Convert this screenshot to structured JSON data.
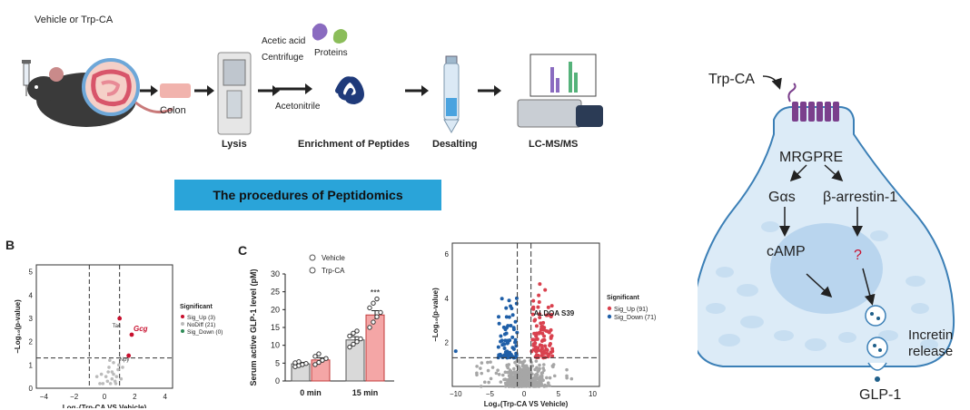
{
  "workflow": {
    "top_left_label": "Vehicle or Trp-CA",
    "colon_label": "Colon",
    "steps": [
      "Lysis",
      "Enrichment of Peptides",
      "Desalting",
      "LC-MS/MS"
    ],
    "reagent_1": "Acetic acid",
    "reagent_2": "Centrifuge",
    "reagent_3": "Acetonitrile",
    "proteins_label": "Proteins",
    "banner": "The procedures of Peptidomics",
    "colors": {
      "banner": "#2aa4d9",
      "peptide": "#1f3a7a",
      "arrow": "#222222"
    }
  },
  "panel_b": {
    "label": "B",
    "xlabel": "Log₂(Trp-CA VS Vehicle)",
    "ylabel": "−Log₁₀(p-value)",
    "x_ticks": [
      "−4",
      "−2",
      "0",
      "2",
      "4"
    ],
    "y_ticks": [
      "0",
      "1",
      "2",
      "3",
      "4",
      "5"
    ],
    "legend_title": "Significant",
    "legend": [
      "Sig_Up (3)",
      "NoDiff (21)",
      "Sig_Down (0)"
    ],
    "annotations": [
      "Tac",
      "Gcg",
      "Npy"
    ],
    "colors": {
      "up": "#c8102e",
      "nodiff": "#bbbbbb",
      "down": "#2e8b57"
    }
  },
  "panel_c": {
    "label": "C",
    "ylabel": "Serum active GLP-1 level (pM)",
    "legend": [
      "Vehicle",
      "Trp-CA"
    ],
    "significance": "***",
    "colors": {
      "vehicle": "#d9d9d9",
      "trp": "#f4a6a6"
    }
  },
  "volcano": {
    "xlabel": "Log₂(Trp-CA VS Vehicle)",
    "ylabel": "−Log₁₀(p-value)",
    "x_ticks": [
      "−10",
      "−5",
      "0",
      "5",
      "10"
    ],
    "y_ticks": [
      "2",
      "4",
      "6"
    ],
    "legend_title": "Significant",
    "legend": [
      "Sig_Up (91)",
      "Sig_Down (71)"
    ],
    "highlight": "ALDOA S39",
    "colors": {
      "up": "#d9414e",
      "down": "#1f5fa8",
      "ns": "#a6a6a6"
    }
  },
  "mechanism": {
    "ligand": "Trp-CA",
    "receptor": "MRGPRE",
    "gas": "Gαs",
    "arrestin": "β-arrestin-1",
    "camp": "cAMP",
    "unknown": "?",
    "incretin_line1": "Incretin",
    "incretin_line2": "release",
    "glp1": "GLP-1",
    "colors": {
      "cell": "#dcebf7",
      "outline": "#3b7fb6",
      "receptor": "#7b3f8c",
      "nucleus": "#b9d5ee"
    }
  },
  "chart_data": [
    {
      "type": "scatter",
      "title": "",
      "xlabel": "Log₂(Trp-CA VS Vehicle)",
      "ylabel": "−Log₁₀(p-value)",
      "xlim": [
        -4.5,
        4.5
      ],
      "ylim": [
        0,
        5.3
      ],
      "series": [
        {
          "name": "Sig_Up (3)",
          "points": [
            [
              1.0,
              3.0
            ],
            [
              1.8,
              2.3
            ],
            [
              1.6,
              1.4
            ]
          ]
        },
        {
          "name": "NoDiff (21)",
          "points": [
            [
              0.2,
              0.3
            ],
            [
              0.5,
              0.7
            ],
            [
              -0.3,
              0.2
            ],
            [
              0.8,
              0.5
            ],
            [
              0.6,
              1.1
            ],
            [
              -0.2,
              0.6
            ],
            [
              0.3,
              0.9
            ],
            [
              1.1,
              0.4
            ],
            [
              0.9,
              0.8
            ],
            [
              0.4,
              0.2
            ],
            [
              -0.5,
              0.5
            ],
            [
              0.7,
              0.3
            ],
            [
              0.1,
              0.5
            ],
            [
              1.2,
              0.9
            ],
            [
              0.6,
              0.6
            ],
            [
              -0.1,
              0.2
            ],
            [
              0.35,
              1.2
            ],
            [
              0.95,
              1.0
            ],
            [
              0.5,
              0.4
            ],
            [
              0.25,
              0.7
            ],
            [
              0.75,
              0.2
            ]
          ]
        },
        {
          "name": "Sig_Down (0)",
          "points": []
        }
      ],
      "vlines": [
        -1,
        1
      ],
      "hline": 1.3
    },
    {
      "type": "bar",
      "title": "",
      "categories": [
        "0 min",
        "15 min"
      ],
      "ylabel": "Serum active GLP-1 level (pM)",
      "ylim": [
        0,
        30
      ],
      "y_ticks": [
        0,
        5,
        10,
        15,
        20,
        25,
        30
      ],
      "series": [
        {
          "name": "Vehicle",
          "values": [
            4.8,
            11.5
          ],
          "errors": [
            0.4,
            0.9
          ],
          "points": [
            [
              4.0,
              4.3,
              4.6,
              4.9,
              5.1,
              5.4
            ],
            [
              9.5,
              10.3,
              11.0,
              11.8,
              12.6,
              13.4,
              14.0
            ]
          ]
        },
        {
          "name": "Trp-CA",
          "values": [
            5.9,
            18.5
          ],
          "errors": [
            0.6,
            1.2
          ],
          "points": [
            [
              4.6,
              5.2,
              5.8,
              6.3,
              6.9,
              7.6
            ],
            [
              15.0,
              16.5,
              18.0,
              19.2,
              20.5,
              21.8,
              23.0
            ]
          ]
        }
      ]
    },
    {
      "type": "scatter",
      "title": "",
      "xlabel": "Log₂(Trp-CA VS Vehicle)",
      "ylabel": "−Log₁₀(p-value)",
      "xlim": [
        -10.5,
        11
      ],
      "ylim": [
        0,
        6.5
      ],
      "series": [
        {
          "name": "Sig_Up (91)"
        },
        {
          "name": "Sig_Down (71)"
        }
      ],
      "vlines": [
        -1,
        1
      ],
      "hline": 1.3
    }
  ]
}
